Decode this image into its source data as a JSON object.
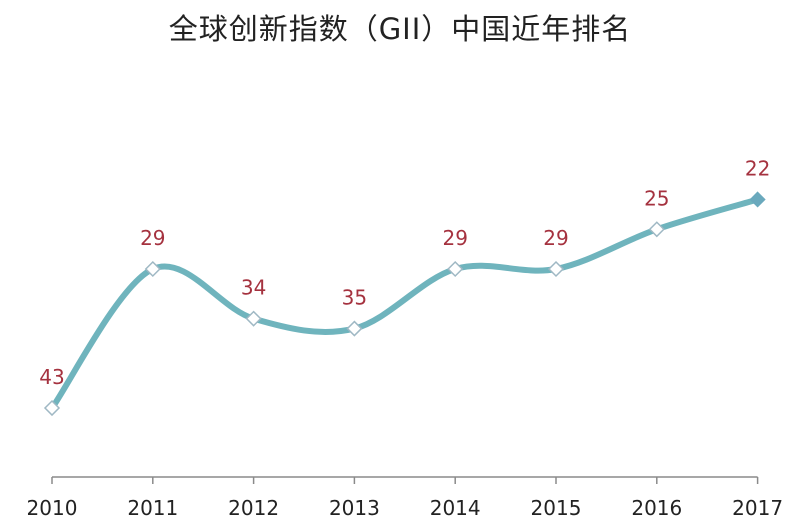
{
  "chart_data": {
    "type": "line",
    "title": "全球创新指数（GII）中国近年排名",
    "xlabel": "",
    "ylabel": "",
    "categories": [
      "2010",
      "2011",
      "2012",
      "2013",
      "2014",
      "2015",
      "2016",
      "2017"
    ],
    "values": [
      43,
      29,
      34,
      35,
      29,
      29,
      25,
      22
    ],
    "y_reversed": true,
    "smooth": true,
    "grid": false,
    "legend": "none",
    "data_labels": true,
    "colors": {
      "line": "#6fb4bd",
      "label": "#a5323f",
      "marker_fill": "#ffffff",
      "last_marker_fill": "#6aa9bd",
      "axis": "#8a8a8a",
      "text": "#222222"
    }
  }
}
